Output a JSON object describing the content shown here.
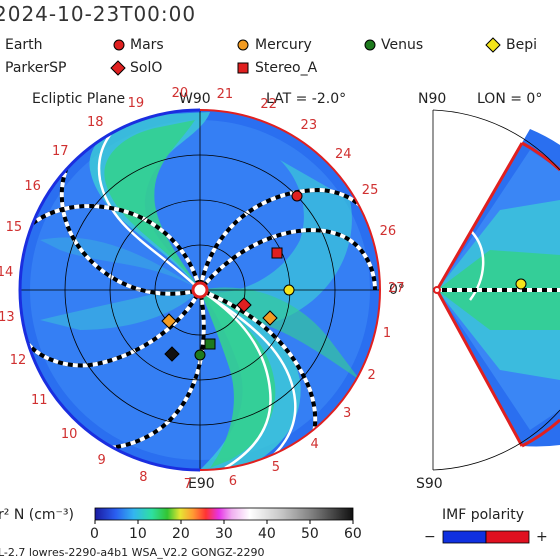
{
  "header": {
    "date": "2024-10-23T00:00"
  },
  "legend": [
    {
      "label": "Earth",
      "marker": "none",
      "color": "#000000"
    },
    {
      "label": "Mars",
      "marker": "circle",
      "color": "#e02020"
    },
    {
      "label": "Mercury",
      "marker": "circle",
      "color": "#f39c22"
    },
    {
      "label": "Venus",
      "marker": "circle",
      "color": "#1e7a1e"
    },
    {
      "label": "Bepi",
      "marker": "diamond",
      "color": "#f5e51a"
    },
    {
      "label": "ParkerSP",
      "marker": "none",
      "color": "#000000"
    },
    {
      "label": "SolO",
      "marker": "diamond",
      "color": "#e02020"
    },
    {
      "label": "Stereo_A",
      "marker": "square",
      "color": "#e02020"
    }
  ],
  "left_panel": {
    "title": "Ecliptic Plane",
    "top_label": "W90",
    "lat_label": "LAT = -2.0°",
    "right_label": "0°",
    "bottom_label": "E90",
    "longitude_numbers": [
      "1",
      "2",
      "3",
      "4",
      "5",
      "6",
      "7",
      "8",
      "9",
      "10",
      "11",
      "12",
      "13",
      "14",
      "15",
      "16",
      "17",
      "18",
      "19",
      "20",
      "21",
      "22",
      "23",
      "24",
      "25",
      "26",
      "27"
    ]
  },
  "right_panel": {
    "top_label": "N90",
    "lon_label": "LON = 0°",
    "bottom_label": "S90"
  },
  "colorbar": {
    "label": "r² N (cm⁻³)",
    "ticks": [
      "0",
      "10",
      "20",
      "30",
      "40",
      "50",
      "60"
    ],
    "colors": [
      "#1a1aa0",
      "#2a5ef0",
      "#33b5f0",
      "#2ee0a0",
      "#33c533",
      "#e6e633",
      "#ff9a33",
      "#ff3333",
      "#e633e6",
      "#f0b0f0",
      "#ffffff",
      "#c8c8c8",
      "#909090",
      "#505050",
      "#101010"
    ]
  },
  "imf": {
    "title": "IMF polarity",
    "minus": "−",
    "plus": "+",
    "neg_color": "#1030e0",
    "pos_color": "#e01020"
  },
  "footer": {
    "text": "L-2.7 lowres-2290-a4b1 WSA_V2.2 GONGZ-2290"
  }
}
